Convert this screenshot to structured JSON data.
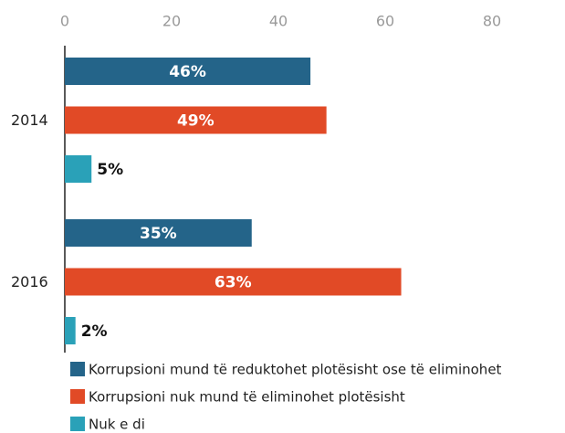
{
  "chart_data": {
    "type": "bar",
    "orientation": "horizontal",
    "categories": [
      "2014",
      "2016"
    ],
    "series": [
      {
        "name": "Korrupsioni mund të reduktohet plotësisht ose të eliminohet",
        "color": "#246489",
        "values": [
          46,
          35
        ],
        "value_labels": [
          "46%",
          "35%"
        ]
      },
      {
        "name": "Korrupsioni nuk mund të eliminohet plotësisht",
        "color": "#e14a26",
        "values": [
          49,
          63
        ],
        "value_labels": [
          "49%",
          "63%"
        ]
      },
      {
        "name": "Nuk e di",
        "color": "#2aa1b8",
        "values": [
          5,
          2
        ],
        "value_labels": [
          "5%",
          "2%"
        ]
      }
    ],
    "xlim": [
      0,
      93
    ],
    "xticks": [
      0,
      20,
      40,
      60,
      80
    ]
  }
}
